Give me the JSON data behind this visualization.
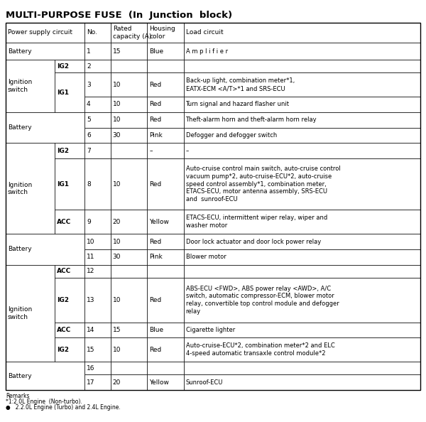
{
  "title": "MULTI-PURPOSE FUSE  (In  Junction  block)",
  "col_props": [
    0.118,
    0.072,
    0.063,
    0.088,
    0.088,
    0.571
  ],
  "header_labels": [
    "Power supply circuit",
    "No.",
    "Rated\ncapacity (A)",
    "Housing\ncolor",
    "Load circuit"
  ],
  "ps1_groups": [
    [
      0,
      0,
      "Battery"
    ],
    [
      1,
      3,
      "Ignition\nswitch"
    ],
    [
      4,
      5,
      "Battery"
    ],
    [
      6,
      8,
      "Ignition\nswitch"
    ],
    [
      9,
      10,
      "Battery"
    ],
    [
      11,
      14,
      "Ignition\nswitch"
    ],
    [
      15,
      16,
      "Battery"
    ]
  ],
  "ps2_groups": [
    [
      1,
      1,
      "IG2"
    ],
    [
      2,
      3,
      "IG1"
    ],
    [
      6,
      6,
      "IG2"
    ],
    [
      7,
      7,
      "IG1"
    ],
    [
      8,
      8,
      "ACC"
    ],
    [
      11,
      11,
      "ACC"
    ],
    [
      12,
      12,
      "IG2"
    ],
    [
      13,
      13,
      "ACC"
    ],
    [
      14,
      14,
      "IG2"
    ]
  ],
  "rows": [
    {
      "no": "1",
      "rated": "15",
      "housing": "Blue",
      "load": "A m p l i f i e r"
    },
    {
      "no": "2",
      "rated": "",
      "housing": "",
      "load": ""
    },
    {
      "no": "3",
      "rated": "10",
      "housing": "Red",
      "load": "Back-up light, combination meter*1,\nEATX-ECM <A/T>*1 and SRS-ECU"
    },
    {
      "no": "4",
      "rated": "10",
      "housing": "Red",
      "load": "Turn signal and hazard flasher unit"
    },
    {
      "no": "5",
      "rated": "10",
      "housing": "Red",
      "load": "Theft-alarm horn and theft-alarm horn relay"
    },
    {
      "no": "6",
      "rated": "30",
      "housing": "Pink",
      "load": "Defogger and defogger switch"
    },
    {
      "no": "7",
      "rated": "",
      "housing": "–",
      "load": "–"
    },
    {
      "no": "8",
      "rated": "10",
      "housing": "Red",
      "load": "Auto-cruise control main switch, auto-cruise control\nvacuum pump*2, auto-cruise-ECU*2, auto-cruise\nspeed control assembly*1, combination meter,\nETACS-ECU, motor antenna assembly, SRS-ECU\nand  sunroof-ECU"
    },
    {
      "no": "9",
      "rated": "20",
      "housing": "Yellow",
      "load": "ETACS-ECU, intermittent wiper relay, wiper and\nwasher motor"
    },
    {
      "no": "10",
      "rated": "10",
      "housing": "Red",
      "load": "Door lock actuator and door lock power relay"
    },
    {
      "no": "11",
      "rated": "30",
      "housing": "Pink",
      "load": "Blower motor"
    },
    {
      "no": "12",
      "rated": "",
      "housing": "",
      "load": ""
    },
    {
      "no": "13",
      "rated": "10",
      "housing": "Red",
      "load": "ABS-ECU <FWD>, ABS power relay <AWD>, A/C\nswitch, automatic compressor-ECM, blower motor\nrelay, convertible top control module and defogger\nrelay"
    },
    {
      "no": "14",
      "rated": "15",
      "housing": "Blue",
      "load": "Cigarette lighter"
    },
    {
      "no": "15",
      "rated": "10",
      "housing": "Red",
      "load": "Auto-cruise-ECU*2, combination meter*2 and ELC\n4-speed automatic transaxle control module*2"
    },
    {
      "no": "16",
      "rated": "",
      "housing": "",
      "load": ""
    },
    {
      "no": "17",
      "rated": "20",
      "housing": "Yellow",
      "load": "Sunroof-ECU"
    }
  ],
  "row_h_raw": [
    1.0,
    0.75,
    1.4,
    0.9,
    0.9,
    0.9,
    0.9,
    3.0,
    1.4,
    0.9,
    0.9,
    0.75,
    2.6,
    0.9,
    1.4,
    0.75,
    0.9
  ],
  "remarks_line1": "Remarks",
  "remarks_line2": "*1:2.0L Engine  (Non-turbo).",
  "remarks_line3": "●   2.2.0L Engine (Turbo) and 2.4L Engine.",
  "bg_color": "#ffffff",
  "title_fontsize": 9.5,
  "fs": 6.5,
  "lw": 0.5
}
